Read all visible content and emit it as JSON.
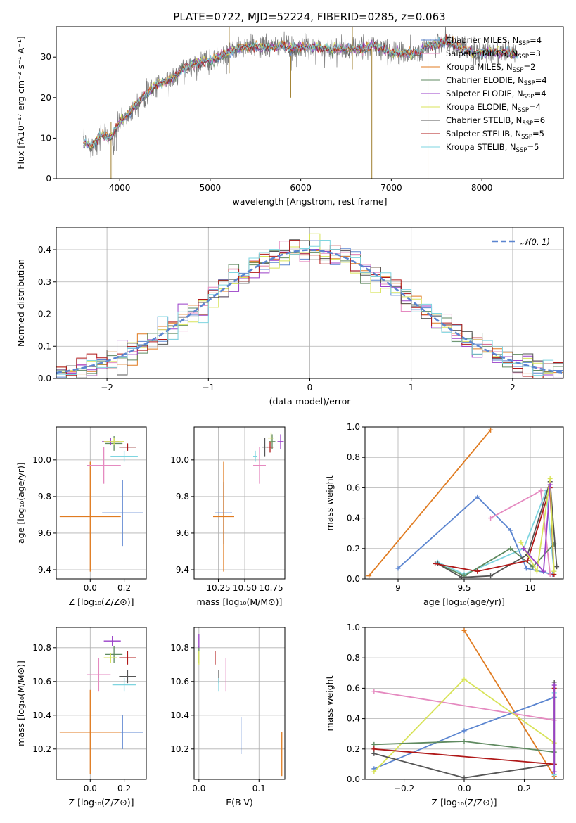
{
  "figure_title": "PLATE=0722, MJD=52224, FIBERID=0285, z=0.063",
  "colors": {
    "blue": "#5b85d0",
    "orange": "#e07b20",
    "pink": "#e58ac0",
    "green": "#5f8a60",
    "purple": "#9a3fc8",
    "yellow": "#d8e35a",
    "dark": "#555555",
    "red": "#b01818",
    "cyan": "#7ed5e0",
    "gauss": "#5b85d0"
  },
  "models": [
    {
      "name": "Chabrier MILES",
      "nssp": "4",
      "color": "#5b85d0"
    },
    {
      "name": "Salpeter MILES",
      "nssp": "3",
      "color": "#e58ac0"
    },
    {
      "name": "Kroupa MILES",
      "nssp": "2",
      "color": "#e07b20"
    },
    {
      "name": "Chabrier ELODIE",
      "nssp": "4",
      "color": "#5f8a60"
    },
    {
      "name": "Salpeter ELODIE",
      "nssp": "4",
      "color": "#9a3fc8"
    },
    {
      "name": "Kroupa ELODIE",
      "nssp": "4",
      "color": "#d8e35a"
    },
    {
      "name": "Chabrier STELIB",
      "nssp": "6",
      "color": "#555555"
    },
    {
      "name": "Salpeter STELIB",
      "nssp": "5",
      "color": "#b01818"
    },
    {
      "name": "Kroupa STELIB",
      "nssp": "5",
      "color": "#7ed5e0"
    }
  ],
  "chart_data": [
    {
      "id": "spectrum",
      "type": "line",
      "xlabel": "wavelength [Angstrom, rest frame]",
      "ylabel": "Flux [fλ10⁻¹⁷ erg cm⁻² s⁻¹ A⁻¹]",
      "xlim": [
        3300,
        8900
      ],
      "ylim": [
        0,
        37.5
      ],
      "xticks": [
        4000,
        5000,
        6000,
        7000,
        8000
      ],
      "yticks": [
        0,
        10,
        20,
        30
      ],
      "continuum": {
        "x": [
          3600,
          3700,
          3800,
          3900,
          4000,
          4100,
          4200,
          4300,
          4400,
          4500,
          4600,
          4700,
          4800,
          4900,
          5000,
          5100,
          5200,
          5300,
          5400,
          5500,
          5600,
          5700,
          5800,
          5900,
          6000,
          6100,
          6200,
          6300,
          6400,
          6500,
          6600,
          6700,
          6800,
          6900,
          7000,
          7100,
          7200,
          7300,
          7400,
          7500,
          7600,
          7700,
          7800,
          7900,
          8000,
          8100,
          8200,
          8300,
          8400,
          8500
        ],
        "y": [
          9,
          8,
          11,
          10,
          14,
          16,
          19,
          21,
          23,
          24,
          25,
          27,
          28,
          29,
          29,
          30,
          31,
          32,
          32.5,
          32.5,
          32.5,
          32.5,
          33,
          32,
          32.5,
          32.5,
          32.5,
          32,
          32,
          32,
          32,
          32,
          33,
          32,
          31,
          31,
          31,
          31,
          33,
          33,
          34,
          33,
          32,
          31,
          31,
          31.5,
          31,
          31,
          30.5,
          30
        ]
      },
      "legend_position": "right",
      "grid": false
    },
    {
      "id": "residual_hist",
      "type": "histogram",
      "xlabel": "(data-model)/error",
      "ylabel": "Normed distribution",
      "xlim": [
        -2.5,
        2.5
      ],
      "ylim": [
        0,
        0.47
      ],
      "xticks": [
        -2,
        -1,
        0,
        1,
        2
      ],
      "yticks": [
        0.0,
        0.1,
        0.2,
        0.3,
        0.4
      ],
      "bin_width": 0.1,
      "bin_start": -2.5,
      "legend": "𝒩(0, 1)",
      "legend_position": "top-right",
      "grid": true
    },
    {
      "id": "Z_age",
      "type": "scatter",
      "xlabel": "Z [log₁₀(Z/Z⊙)]",
      "ylabel": "age  [log₁₀(age/yr)]",
      "xlim": [
        -0.2,
        0.33
      ],
      "ylim": [
        9.35,
        10.18
      ],
      "xticks": [
        0.0,
        0.2
      ],
      "xticklabels": [
        "0.0",
        "0.2"
      ],
      "yticks": [
        9.4,
        9.6,
        9.8,
        10.0
      ],
      "points": [
        {
          "x": 0.19,
          "y": 9.71,
          "ex": 0.12,
          "ey": 0.18,
          "c": "#5b85d0"
        },
        {
          "x": 0.0,
          "y": 9.69,
          "ex": 0.18,
          "ey": 0.3,
          "c": "#e07b20"
        },
        {
          "x": 0.08,
          "y": 9.97,
          "ex": 0.1,
          "ey": 0.1,
          "c": "#e58ac0"
        },
        {
          "x": 0.14,
          "y": 10.09,
          "ex": 0.05,
          "ey": 0.04,
          "c": "#5f8a60"
        },
        {
          "x": 0.12,
          "y": 10.1,
          "ex": 0.05,
          "ey": 0.02,
          "c": "#9a3fc8"
        },
        {
          "x": 0.14,
          "y": 10.1,
          "ex": 0.06,
          "ey": 0.02,
          "c": "#d8e35a"
        },
        {
          "x": 0.22,
          "y": 10.07,
          "ex": 0.05,
          "ey": 0.02,
          "c": "#555555"
        },
        {
          "x": 0.22,
          "y": 10.07,
          "ex": 0.05,
          "ey": 0.02,
          "c": "#b01818"
        },
        {
          "x": 0.2,
          "y": 10.02,
          "ex": 0.08,
          "ey": 0.03,
          "c": "#7ed5e0"
        }
      ],
      "grid": true
    },
    {
      "id": "mass_age",
      "type": "scatter",
      "xlabel": "mass [log₁₀(M/M⊙)]",
      "ylabel": "",
      "xlim": [
        10.02,
        10.88
      ],
      "ylim": [
        9.35,
        10.18
      ],
      "xticks": [
        10.25,
        10.5,
        10.75
      ],
      "xticklabels": [
        "10.25",
        "10.50",
        "10.75"
      ],
      "yticks": [
        9.4,
        9.6,
        9.8,
        10.0
      ],
      "points": [
        {
          "x": 10.3,
          "y": 9.71,
          "ex": 0.08,
          "ey": 0.17,
          "c": "#5b85d0"
        },
        {
          "x": 10.3,
          "y": 9.69,
          "ex": 0.1,
          "ey": 0.3,
          "c": "#e07b20"
        },
        {
          "x": 10.64,
          "y": 9.97,
          "ex": 0.06,
          "ey": 0.1,
          "c": "#e58ac0"
        },
        {
          "x": 10.76,
          "y": 10.1,
          "ex": 0.03,
          "ey": 0.04,
          "c": "#5f8a60"
        },
        {
          "x": 10.84,
          "y": 10.1,
          "ex": 0.03,
          "ey": 0.04,
          "c": "#9a3fc8"
        },
        {
          "x": 10.75,
          "y": 10.12,
          "ex": 0.03,
          "ey": 0.03,
          "c": "#d8e35a"
        },
        {
          "x": 10.69,
          "y": 10.07,
          "ex": 0.03,
          "ey": 0.05,
          "c": "#555555"
        },
        {
          "x": 10.74,
          "y": 10.07,
          "ex": 0.03,
          "ey": 0.03,
          "c": "#b01818"
        },
        {
          "x": 10.6,
          "y": 10.02,
          "ex": 0.02,
          "ey": 0.03,
          "c": "#7ed5e0"
        }
      ],
      "grid": true
    },
    {
      "id": "age_weight",
      "type": "line",
      "xlabel": "age  [log₁₀(age/yr)]",
      "ylabel": "mass weight",
      "xlim": [
        8.75,
        10.25
      ],
      "ylim": [
        0,
        1
      ],
      "xticks": [
        9.0,
        9.5,
        10.0
      ],
      "yticks": [
        0.0,
        0.2,
        0.4,
        0.6,
        0.8,
        1.0
      ],
      "series": [
        {
          "c": "#e07b20",
          "x": [
            8.78,
            9.7
          ],
          "y": [
            0.02,
            0.98
          ]
        },
        {
          "c": "#5b85d0",
          "x": [
            9.0,
            9.6,
            9.85,
            9.97,
            10.17
          ],
          "y": [
            0.07,
            0.54,
            0.32,
            0.07,
            0.03
          ]
        },
        {
          "c": "#e58ac0",
          "x": [
            9.7,
            10.08,
            10.15
          ],
          "y": [
            0.4,
            0.58,
            0.03
          ]
        },
        {
          "c": "#7ed5e0",
          "x": [
            9.3,
            9.5,
            9.95,
            10.12,
            10.18
          ],
          "y": [
            0.11,
            0.03,
            0.2,
            0.58,
            0.05
          ]
        },
        {
          "c": "#5f8a60",
          "x": [
            9.3,
            9.5,
            9.85,
            10.02,
            10.18
          ],
          "y": [
            0.1,
            0.02,
            0.2,
            0.08,
            0.23
          ]
        },
        {
          "c": "#555555",
          "x": [
            9.3,
            9.48,
            9.7,
            9.98,
            10.15,
            10.2
          ],
          "y": [
            0.1,
            0.01,
            0.02,
            0.16,
            0.64,
            0.08
          ]
        },
        {
          "c": "#b01818",
          "x": [
            9.28,
            9.6,
            9.98,
            10.15,
            10.18
          ],
          "y": [
            0.1,
            0.05,
            0.12,
            0.6,
            0.03
          ]
        },
        {
          "c": "#d8e35a",
          "x": [
            9.93,
            10.05,
            10.15,
            10.18
          ],
          "y": [
            0.24,
            0.05,
            0.66,
            0.05
          ]
        },
        {
          "c": "#9a3fc8",
          "x": [
            9.95,
            10.1,
            10.15
          ],
          "y": [
            0.2,
            0.05,
            0.62
          ]
        }
      ],
      "grid": true
    },
    {
      "id": "Z_mass",
      "type": "scatter",
      "xlabel": "Z [log₁₀(Z/Z⊙)]",
      "ylabel": "mass [log₁₀(M/M⊙)]",
      "xlim": [
        -0.2,
        0.33
      ],
      "ylim": [
        10.02,
        10.92
      ],
      "xticks": [
        0.0,
        0.2
      ],
      "xticklabels": [
        "0.0",
        "0.2"
      ],
      "yticks": [
        10.2,
        10.4,
        10.6,
        10.8
      ],
      "points": [
        {
          "x": 0.19,
          "y": 10.3,
          "ex": 0.12,
          "ey": 0.1,
          "c": "#5b85d0"
        },
        {
          "x": 0.0,
          "y": 10.3,
          "ex": 0.18,
          "ey": 0.25,
          "c": "#e07b20"
        },
        {
          "x": 0.05,
          "y": 10.64,
          "ex": 0.07,
          "ey": 0.1,
          "c": "#e58ac0"
        },
        {
          "x": 0.14,
          "y": 10.76,
          "ex": 0.05,
          "ey": 0.05,
          "c": "#5f8a60"
        },
        {
          "x": 0.13,
          "y": 10.84,
          "ex": 0.05,
          "ey": 0.03,
          "c": "#9a3fc8"
        },
        {
          "x": 0.12,
          "y": 10.74,
          "ex": 0.04,
          "ey": 0.03,
          "c": "#d8e35a"
        },
        {
          "x": 0.22,
          "y": 10.63,
          "ex": 0.05,
          "ey": 0.04,
          "c": "#555555"
        },
        {
          "x": 0.22,
          "y": 10.74,
          "ex": 0.05,
          "ey": 0.04,
          "c": "#b01818"
        },
        {
          "x": 0.2,
          "y": 10.58,
          "ex": 0.07,
          "ey": 0.04,
          "c": "#7ed5e0"
        }
      ],
      "grid": true
    },
    {
      "id": "ebv_mass",
      "type": "scatter",
      "xlabel": "E(B-V)",
      "ylabel": "",
      "xlim": [
        -0.008,
        0.143
      ],
      "ylim": [
        10.02,
        10.92
      ],
      "xticks": [
        0.0,
        0.1
      ],
      "xticklabels": [
        "0.0",
        "0.1"
      ],
      "yticks": [
        10.2,
        10.4,
        10.6,
        10.8
      ],
      "points": [
        {
          "x": 0.07,
          "y": 10.28,
          "ex": 0.0,
          "ey": 0.11,
          "c": "#5b85d0"
        },
        {
          "x": 0.138,
          "y": 10.17,
          "ex": 0.0,
          "ey": 0.13,
          "c": "#e07b20"
        },
        {
          "x": 0.045,
          "y": 10.64,
          "ex": 0.0,
          "ey": 0.1,
          "c": "#e58ac0"
        },
        {
          "x": 0.0,
          "y": 10.76,
          "ex": 0.0,
          "ey": 0.05,
          "c": "#5f8a60"
        },
        {
          "x": 0.0,
          "y": 10.84,
          "ex": 0.0,
          "ey": 0.04,
          "c": "#9a3fc8"
        },
        {
          "x": 0.0,
          "y": 10.74,
          "ex": 0.0,
          "ey": 0.04,
          "c": "#d8e35a"
        },
        {
          "x": 0.033,
          "y": 10.63,
          "ex": 0.0,
          "ey": 0.04,
          "c": "#555555"
        },
        {
          "x": 0.027,
          "y": 10.74,
          "ex": 0.0,
          "ey": 0.04,
          "c": "#b01818"
        },
        {
          "x": 0.033,
          "y": 10.58,
          "ex": 0.0,
          "ey": 0.04,
          "c": "#7ed5e0"
        }
      ],
      "grid": true
    },
    {
      "id": "Z_weight",
      "type": "line",
      "xlabel": "Z [log₁₀(Z/Z⊙)]",
      "ylabel": "mass weight",
      "xlim": [
        -0.33,
        0.33
      ],
      "ylim": [
        0,
        1
      ],
      "xticks": [
        -0.2,
        0.0,
        0.2
      ],
      "xticklabels": [
        "−0.2",
        "0.0",
        "0.2"
      ],
      "yticks": [
        0.0,
        0.2,
        0.4,
        0.6,
        0.8,
        1.0
      ],
      "series": [
        {
          "c": "#e07b20",
          "x": [
            0.0,
            0.3
          ],
          "y": [
            0.98,
            0.02
          ]
        },
        {
          "c": "#e58ac0",
          "x": [
            -0.3,
            0.3
          ],
          "y": [
            0.58,
            0.39
          ]
        },
        {
          "c": "#5b85d0",
          "x": [
            -0.3,
            0.0,
            0.3
          ],
          "y": [
            0.07,
            0.32,
            0.54
          ]
        },
        {
          "c": "#d8e35a",
          "x": [
            -0.3,
            0.0,
            0.3
          ],
          "y": [
            0.05,
            0.66,
            0.24
          ]
        },
        {
          "c": "#5f8a60",
          "x": [
            -0.3,
            0.0,
            0.3
          ],
          "y": [
            0.23,
            0.25,
            0.18
          ]
        },
        {
          "c": "#555555",
          "x": [
            -0.3,
            0.0,
            0.3,
            0.3
          ],
          "y": [
            0.17,
            0.01,
            0.1,
            0.64
          ]
        },
        {
          "c": "#b01818",
          "x": [
            -0.3,
            0.3,
            0.3
          ],
          "y": [
            0.2,
            0.1,
            0.6
          ]
        },
        {
          "c": "#7ed5e0",
          "x": [
            0.3,
            0.3
          ],
          "y": [
            0.03,
            0.57
          ]
        },
        {
          "c": "#9a3fc8",
          "x": [
            0.3,
            0.3
          ],
          "y": [
            0.05,
            0.62
          ]
        }
      ],
      "grid": true
    }
  ]
}
